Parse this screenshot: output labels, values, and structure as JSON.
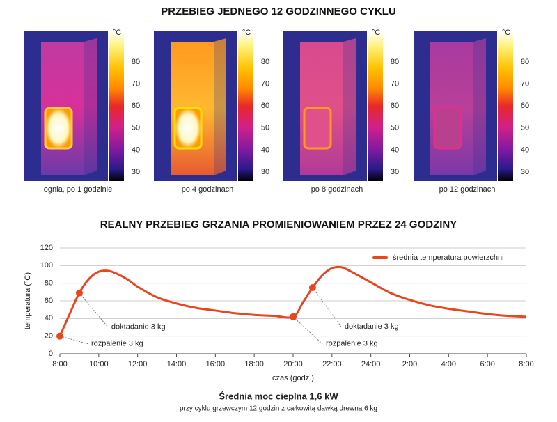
{
  "thermal": {
    "title": "PRZEBIEG JEDNEGO 12 GODZINNEGO CYKLU",
    "unit": "°C",
    "scale_ticks": [
      30,
      40,
      50,
      60,
      70,
      80
    ],
    "panels": [
      {
        "caption": "ognia, po 1 godzinie"
      },
      {
        "caption": "po 4 godzinach"
      },
      {
        "caption": "po 8 godzinach"
      },
      {
        "caption": "po 12 godzinach"
      }
    ]
  },
  "chart_data": {
    "type": "line",
    "title": "REALNY PRZEBIEG GRZANIA PROMIENIOWANIEM PRZEZ 24 GODZINY",
    "xlabel": "czas (godz.)",
    "ylabel": "temperatura (°C)",
    "x": [
      0,
      0.5,
      1,
      1.5,
      2,
      2.5,
      3,
      3.5,
      4,
      5,
      6,
      7,
      8,
      9,
      10,
      11,
      12,
      12.5,
      13,
      13.5,
      14,
      14.5,
      15,
      16,
      17,
      18,
      19,
      20,
      21,
      22,
      23,
      24
    ],
    "series": [
      {
        "name": "średnia temperatura powierzchni",
        "color": "#e8461e",
        "values": [
          20,
          45,
          69,
          85,
          93,
          94,
          90,
          84,
          76,
          64,
          57,
          52,
          49,
          46,
          44,
          43,
          42,
          58,
          75,
          89,
          97,
          98,
          93,
          81,
          69,
          61,
          55,
          51,
          48,
          45,
          43,
          42
        ]
      }
    ],
    "xlim": [
      0,
      24
    ],
    "xticks": [
      {
        "value": 0,
        "label": "8:00"
      },
      {
        "value": 2,
        "label": "10:00"
      },
      {
        "value": 4,
        "label": "12:00"
      },
      {
        "value": 6,
        "label": "14:00"
      },
      {
        "value": 8,
        "label": "16:00"
      },
      {
        "value": 10,
        "label": "18:00"
      },
      {
        "value": 12,
        "label": "20:00"
      },
      {
        "value": 14,
        "label": "22:00"
      },
      {
        "value": 16,
        "label": "24:00"
      },
      {
        "value": 18,
        "label": "2:00"
      },
      {
        "value": 20,
        "label": "4:00"
      },
      {
        "value": 22,
        "label": "6:00"
      },
      {
        "value": 24,
        "label": "8:00"
      }
    ],
    "ylim": [
      0,
      120
    ],
    "yticks": [
      0,
      20,
      40,
      60,
      80,
      100,
      120
    ],
    "grid": true,
    "legend": "upper right",
    "annotations": [
      {
        "text": "rozpalenie 3 kg"
      },
      {
        "text": "doktadanie 3 kg"
      },
      {
        "text": "rozpalenie 3 kg"
      },
      {
        "text": "doktadanie 3 kg"
      }
    ]
  },
  "footer": {
    "headline": "Średnia moc cieplna 1,6 kW",
    "note": "przy cyklu grzewczym 12 godzin z całkowitą dawką drewna 6 kg"
  }
}
